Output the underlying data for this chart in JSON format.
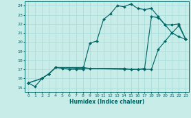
{
  "xlabel": "Humidex (Indice chaleur)",
  "bg_color": "#c8ece8",
  "line_color": "#006666",
  "grid_color": "#aaddda",
  "xlim": [
    -0.5,
    23.5
  ],
  "ylim": [
    14.5,
    24.5
  ],
  "xticks": [
    0,
    1,
    2,
    3,
    4,
    5,
    6,
    7,
    8,
    9,
    10,
    11,
    12,
    13,
    14,
    15,
    16,
    17,
    18,
    19,
    20,
    21,
    22,
    23
  ],
  "yticks": [
    15,
    16,
    17,
    18,
    19,
    20,
    21,
    22,
    23,
    24
  ],
  "line1_x": [
    0,
    1,
    2,
    3,
    4,
    5,
    6,
    7,
    8,
    9,
    10,
    11,
    12,
    13,
    14,
    15,
    16,
    17,
    18,
    19,
    20,
    21,
    22,
    23
  ],
  "line1_y": [
    15.5,
    15.1,
    16.0,
    16.5,
    17.2,
    17.1,
    17.0,
    17.0,
    17.0,
    19.9,
    20.1,
    22.5,
    23.1,
    24.0,
    23.9,
    24.2,
    23.7,
    23.6,
    23.7,
    22.8,
    21.9,
    21.0,
    20.6,
    20.3
  ],
  "line2_x": [
    0,
    2,
    3,
    4,
    8,
    9,
    14,
    15,
    16,
    17,
    18,
    19,
    20,
    21,
    22,
    23
  ],
  "line2_y": [
    15.5,
    16.0,
    16.5,
    17.2,
    17.2,
    17.1,
    17.1,
    17.0,
    17.0,
    17.1,
    22.8,
    22.7,
    21.9,
    21.9,
    22.0,
    20.3
  ],
  "line3_x": [
    0,
    2,
    3,
    4,
    8,
    14,
    15,
    16,
    17,
    18,
    19,
    20,
    21,
    22,
    23
  ],
  "line3_y": [
    15.5,
    16.0,
    16.5,
    17.2,
    17.1,
    17.0,
    17.0,
    17.0,
    17.0,
    17.0,
    19.2,
    20.1,
    21.0,
    21.8,
    20.3
  ]
}
